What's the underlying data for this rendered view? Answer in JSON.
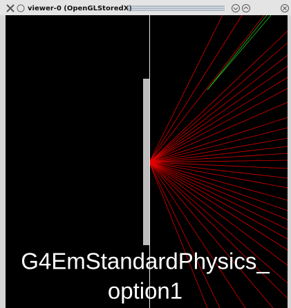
{
  "window": {
    "title": "viewer-0 (OpenGLStoredX)"
  },
  "overlay": {
    "lines": [
      "G4EmStandardPhysics_",
      "option1"
    ]
  }
}
